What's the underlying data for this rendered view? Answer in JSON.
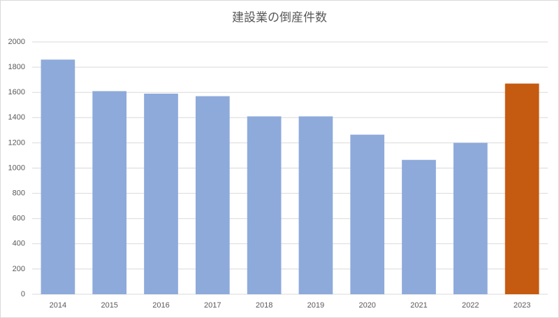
{
  "chart_data": {
    "type": "bar",
    "title": "建設業の倒産件数",
    "categories": [
      "2014",
      "2015",
      "2016",
      "2017",
      "2018",
      "2019",
      "2020",
      "2021",
      "2022",
      "2023"
    ],
    "values": [
      1860,
      1610,
      1590,
      1570,
      1410,
      1410,
      1265,
      1065,
      1200,
      1670
    ],
    "colors": [
      "#8eaadb",
      "#8eaadb",
      "#8eaadb",
      "#8eaadb",
      "#8eaadb",
      "#8eaadb",
      "#8eaadb",
      "#8eaadb",
      "#8eaadb",
      "#c55a11"
    ],
    "ylim": [
      0,
      2000
    ],
    "yticks": [
      0,
      200,
      400,
      600,
      800,
      1000,
      1200,
      1400,
      1600,
      1800,
      2000
    ],
    "grid": true
  }
}
